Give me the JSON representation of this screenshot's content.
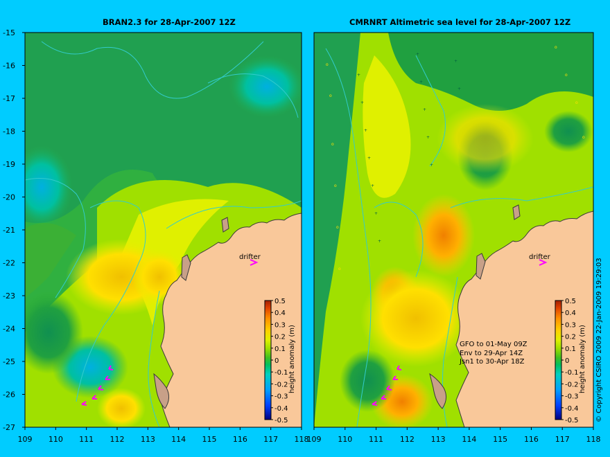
{
  "left_panel": {
    "title": "BRAN2.3 for 28-Apr-2007 12Z",
    "marker_label": "drifter",
    "colorbar_label": "height anomaly (m)"
  },
  "right_panel": {
    "title": "CMRNRT Altimetric sea level  for 28-Apr-2007 12Z",
    "marker_label": "drifter",
    "colorbar_label": "height anomaly (m)",
    "notes": [
      "GFO to 01-May 09Z",
      "Env to 29-Apr 14Z",
      "Jsn1 to 30-Apr 18Z"
    ]
  },
  "axes": {
    "lon_ticks": [
      "109",
      "110",
      "111",
      "112",
      "113",
      "114",
      "115",
      "116",
      "117",
      "118"
    ],
    "lat_ticks": [
      "-15",
      "-16",
      "-17",
      "-18",
      "-19",
      "-20",
      "-21",
      "-22",
      "-23",
      "-24",
      "-25",
      "-26",
      "-27"
    ],
    "xlim": [
      109,
      118
    ],
    "ylim": [
      -27,
      -15
    ]
  },
  "colorbar": {
    "ticks": [
      "0.5",
      "0.4",
      "0.3",
      "0.2",
      "0.1",
      "0",
      "-0.1",
      "-0.2",
      "-0.3",
      "-0.4",
      "-0.5"
    ],
    "range": [
      -0.5,
      0.5
    ],
    "colors": [
      "#000080",
      "#0040ff",
      "#00a0ff",
      "#00d0c0",
      "#00c060",
      "#40c020",
      "#a0e000",
      "#e0f000",
      "#ffd000",
      "#ff9000",
      "#e04000",
      "#a02000"
    ]
  },
  "copyright": "© Copyright CSIRO 2009   22-Jan-2009 19:29:03",
  "colors": {
    "background": "#00ccff",
    "land": "#f9c89a",
    "coastline": "#3a3a3a",
    "drifter_marker": "#ff00ff",
    "contour": "#33cccc"
  }
}
